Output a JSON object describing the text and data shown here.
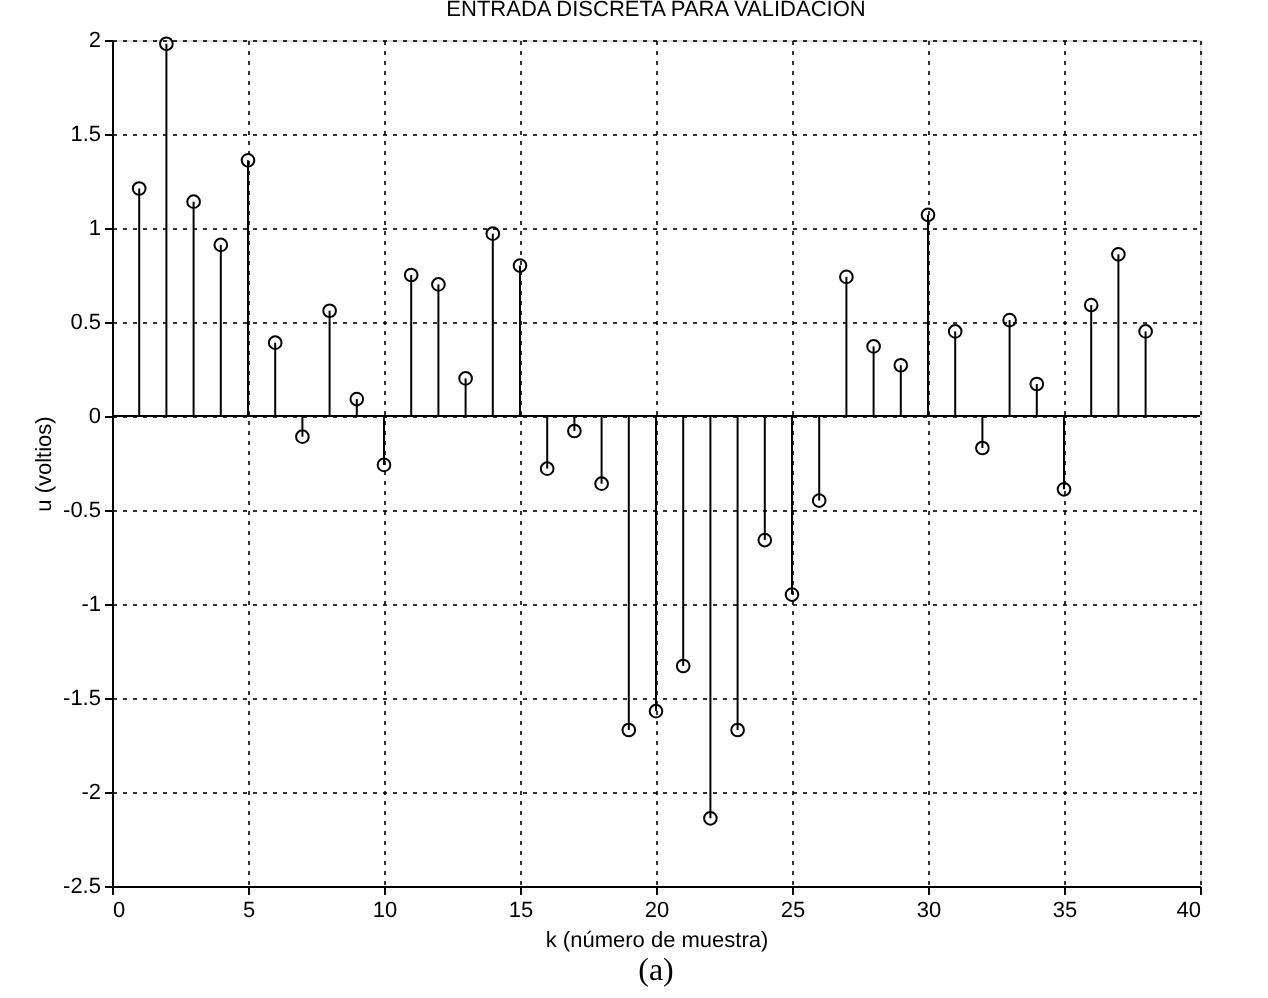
{
  "chart_data": {
    "type": "lollipop",
    "title": "ENTRADA DISCRETA PARA VALIDACION",
    "xlabel": "k (número de muestra)",
    "ylabel": "u (voltios)",
    "x": [
      1,
      2,
      3,
      4,
      5,
      6,
      7,
      8,
      9,
      10,
      11,
      12,
      13,
      14,
      15,
      16,
      17,
      18,
      19,
      20,
      21,
      22,
      23,
      24,
      25,
      26,
      27,
      28,
      29,
      30,
      31,
      32,
      33,
      34,
      35,
      36,
      37,
      38
    ],
    "series": [
      {
        "color": "#000000",
        "values": [
          1.21,
          1.98,
          1.14,
          0.91,
          1.36,
          0.39,
          -0.11,
          0.56,
          0.09,
          -0.26,
          0.75,
          0.7,
          0.2,
          0.97,
          0.8,
          -0.28,
          -0.08,
          -0.36,
          -1.67,
          -1.57,
          -1.33,
          -2.14,
          -1.67,
          -0.66,
          -0.95,
          -0.45,
          0.74,
          0.37,
          0.27,
          1.07,
          0.45,
          -0.17,
          0.51,
          0.17,
          -0.39,
          0.59,
          0.86,
          0.45
        ]
      }
    ],
    "xlim": [
      0,
      40
    ],
    "xticks": [
      0,
      5,
      10,
      15,
      20,
      25,
      30,
      35,
      40
    ],
    "ylim": [
      -2.5,
      2
    ],
    "yticks": [
      -2.5,
      -2,
      -1.5,
      -1,
      -0.5,
      0,
      0.5,
      1,
      1.5,
      2
    ],
    "ref_lines": [
      {
        "axis": "y",
        "value": 0,
        "color": "#000000"
      }
    ],
    "grid": true,
    "marker": "circle",
    "annotations": [
      "(a)"
    ]
  }
}
